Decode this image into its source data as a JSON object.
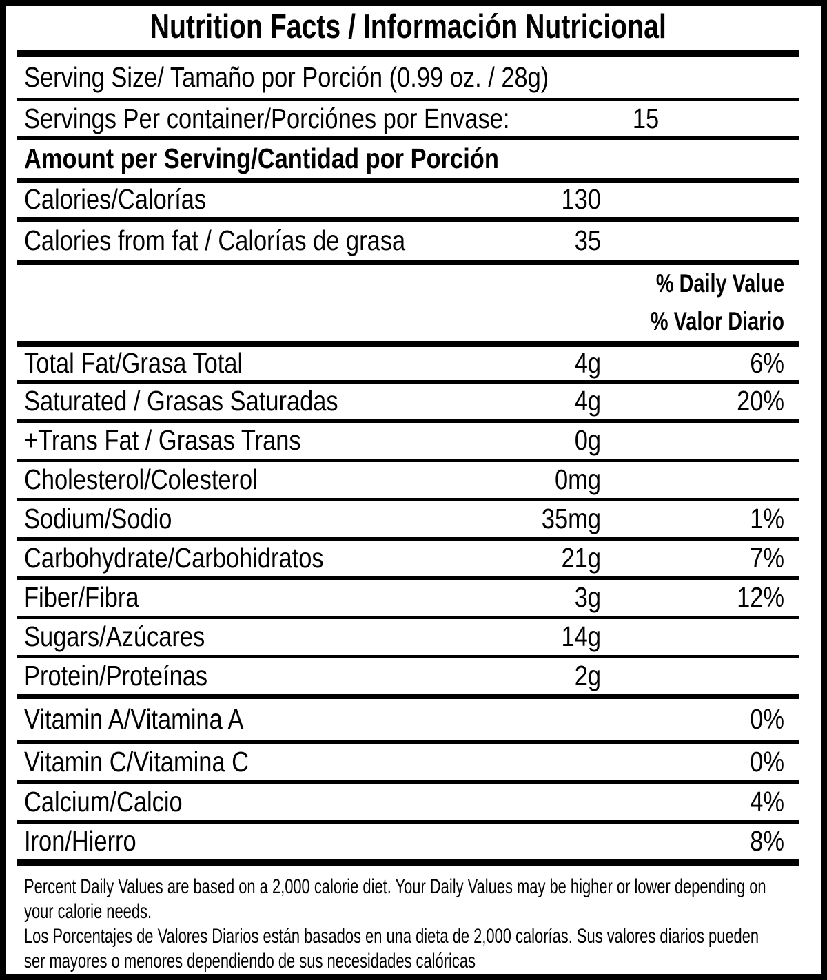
{
  "label": {
    "title": "Nutrition Facts / Información Nutricional",
    "rows": [
      {
        "label": "Serving Size/ Tamaño por Porción  (0.99 oz. / 28g)",
        "amount": "",
        "pct": ""
      },
      {
        "label": "Servings Per container/Porciónes por Envase:",
        "amount": "15",
        "pct": ""
      },
      {
        "label": "Amount per Serving/Cantidad por Porción",
        "amount": "",
        "pct": ""
      },
      {
        "label": "Calories/Calorías",
        "amount": "130",
        "pct": ""
      },
      {
        "label": "Calories from fat / Calorías de grasa",
        "amount": "35",
        "pct": ""
      },
      {
        "label": "Total Fat/Grasa Total",
        "amount": "4g",
        "pct": "6%"
      },
      {
        "label": "Saturated / Grasas Saturadas",
        "amount": "4g",
        "pct": "20%"
      },
      {
        "label": "+Trans Fat / Grasas Trans",
        "amount": "0g",
        "pct": ""
      },
      {
        "label": "Cholesterol/Colesterol",
        "amount": "0mg",
        "pct": ""
      },
      {
        "label": "Sodium/Sodio",
        "amount": "35mg",
        "pct": "1%"
      },
      {
        "label": "Carbohydrate/Carbohidratos",
        "amount": "21g",
        "pct": "7%"
      },
      {
        "label": "Fiber/Fibra",
        "amount": "3g",
        "pct": "12%"
      },
      {
        "label": "Sugars/Azúcares",
        "amount": "14g",
        "pct": ""
      },
      {
        "label": "Protein/Proteínas",
        "amount": "2g",
        "pct": ""
      },
      {
        "label": "Vitamin A/Vitamina A",
        "amount": "",
        "pct": "0%"
      },
      {
        "label": "Vitamin C/Vitamina C",
        "amount": "",
        "pct": "0%"
      },
      {
        "label": "Calcium/Calcio",
        "amount": "",
        "pct": "4%"
      },
      {
        "label": "Iron/Hierro",
        "amount": "",
        "pct": "8%"
      }
    ],
    "daily_value_header": [
      "% Daily Value",
      "% Valor Diario"
    ],
    "footnotes": [
      "Percent Daily Values are based on a 2,000 calorie diet. Your Daily Values may be higher or lower depending on your calorie needs.",
      "Los Porcentajes de Valores Diarios están basados en una dieta de 2,000 calorías. Sus valores diarios pueden ser mayores o menores dependiendo de sus necesidades calóricas"
    ]
  },
  "colors": {
    "ink": "#000000",
    "paper": "#ffffff"
  }
}
